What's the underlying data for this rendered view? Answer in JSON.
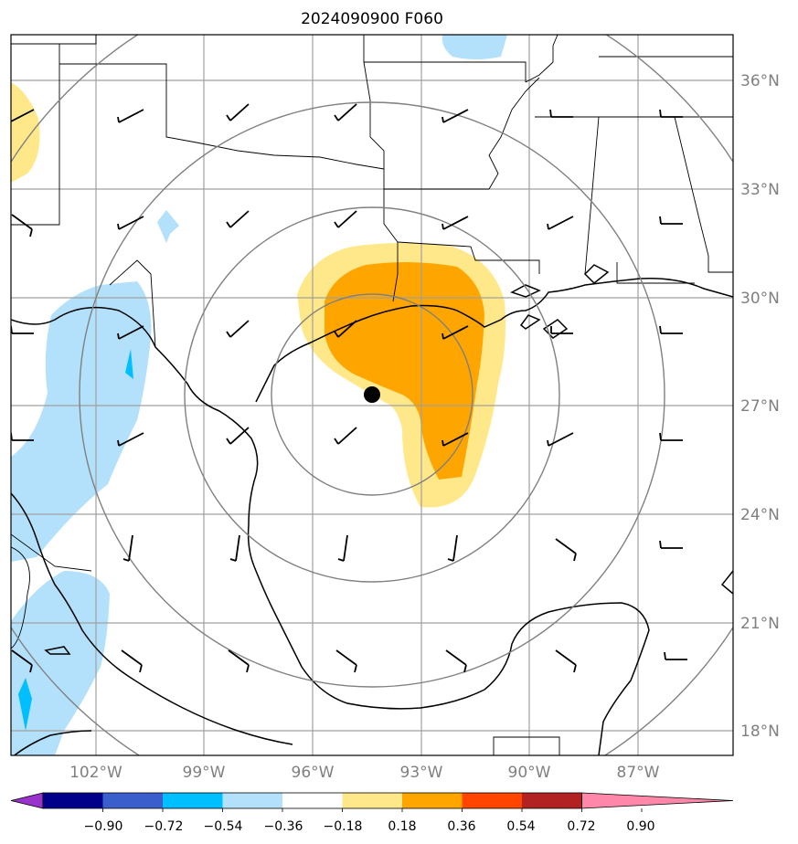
{
  "title": "2024090900 F060",
  "colors": {
    "coast": "#000000",
    "borders": "#000000",
    "grid": "#a0a0a0",
    "rings": "#808080",
    "shade_pos_light": "#ffe88a",
    "shade_pos_mid": "#ffa500",
    "shade_neg_light": "#b3e0fb",
    "shade_neg_mid": "#00bfff"
  },
  "map": {
    "lon_labels": [
      "102°W",
      "99°W",
      "96°W",
      "93°W",
      "90°W",
      "87°W"
    ],
    "lat_labels": [
      "36°N",
      "33°N",
      "30°N",
      "27°N",
      "24°N",
      "21°N",
      "18°N"
    ],
    "center_marker": "storm-center-dot"
  },
  "colorbar": {
    "tick_labels": [
      "−0.90",
      "−0.72",
      "−0.54",
      "−0.36",
      "−0.18",
      "0.18",
      "0.36",
      "0.54",
      "0.72",
      "0.90"
    ],
    "bins": [
      "#9933cc",
      "#00008b",
      "#3a5fcd",
      "#00bfff",
      "#b3e0fb",
      "#ffffff",
      "#ffe88a",
      "#ffa500",
      "#ff4500",
      "#b22222",
      "#ff88aa"
    ],
    "extend": "both"
  }
}
